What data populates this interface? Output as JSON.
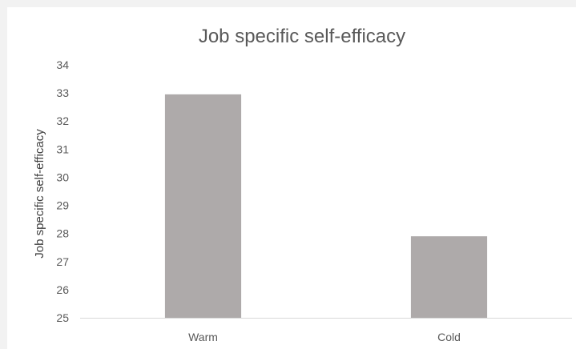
{
  "chart_data": {
    "type": "bar",
    "title": "Job specific self-efficacy",
    "xlabel": "",
    "ylabel": "Job specific self-efficacy",
    "categories": [
      "Warm",
      "Cold"
    ],
    "values": [
      32.95,
      27.9
    ],
    "ylim": [
      25,
      34
    ],
    "yticks": [
      25,
      26,
      27,
      28,
      29,
      30,
      31,
      32,
      33,
      34
    ],
    "grid": false,
    "legend": "none",
    "colors": {
      "bar": "#aeaaaa",
      "axis": "#d9d9d9",
      "background": "#ffffff",
      "frame": "#f2f2f2"
    }
  }
}
